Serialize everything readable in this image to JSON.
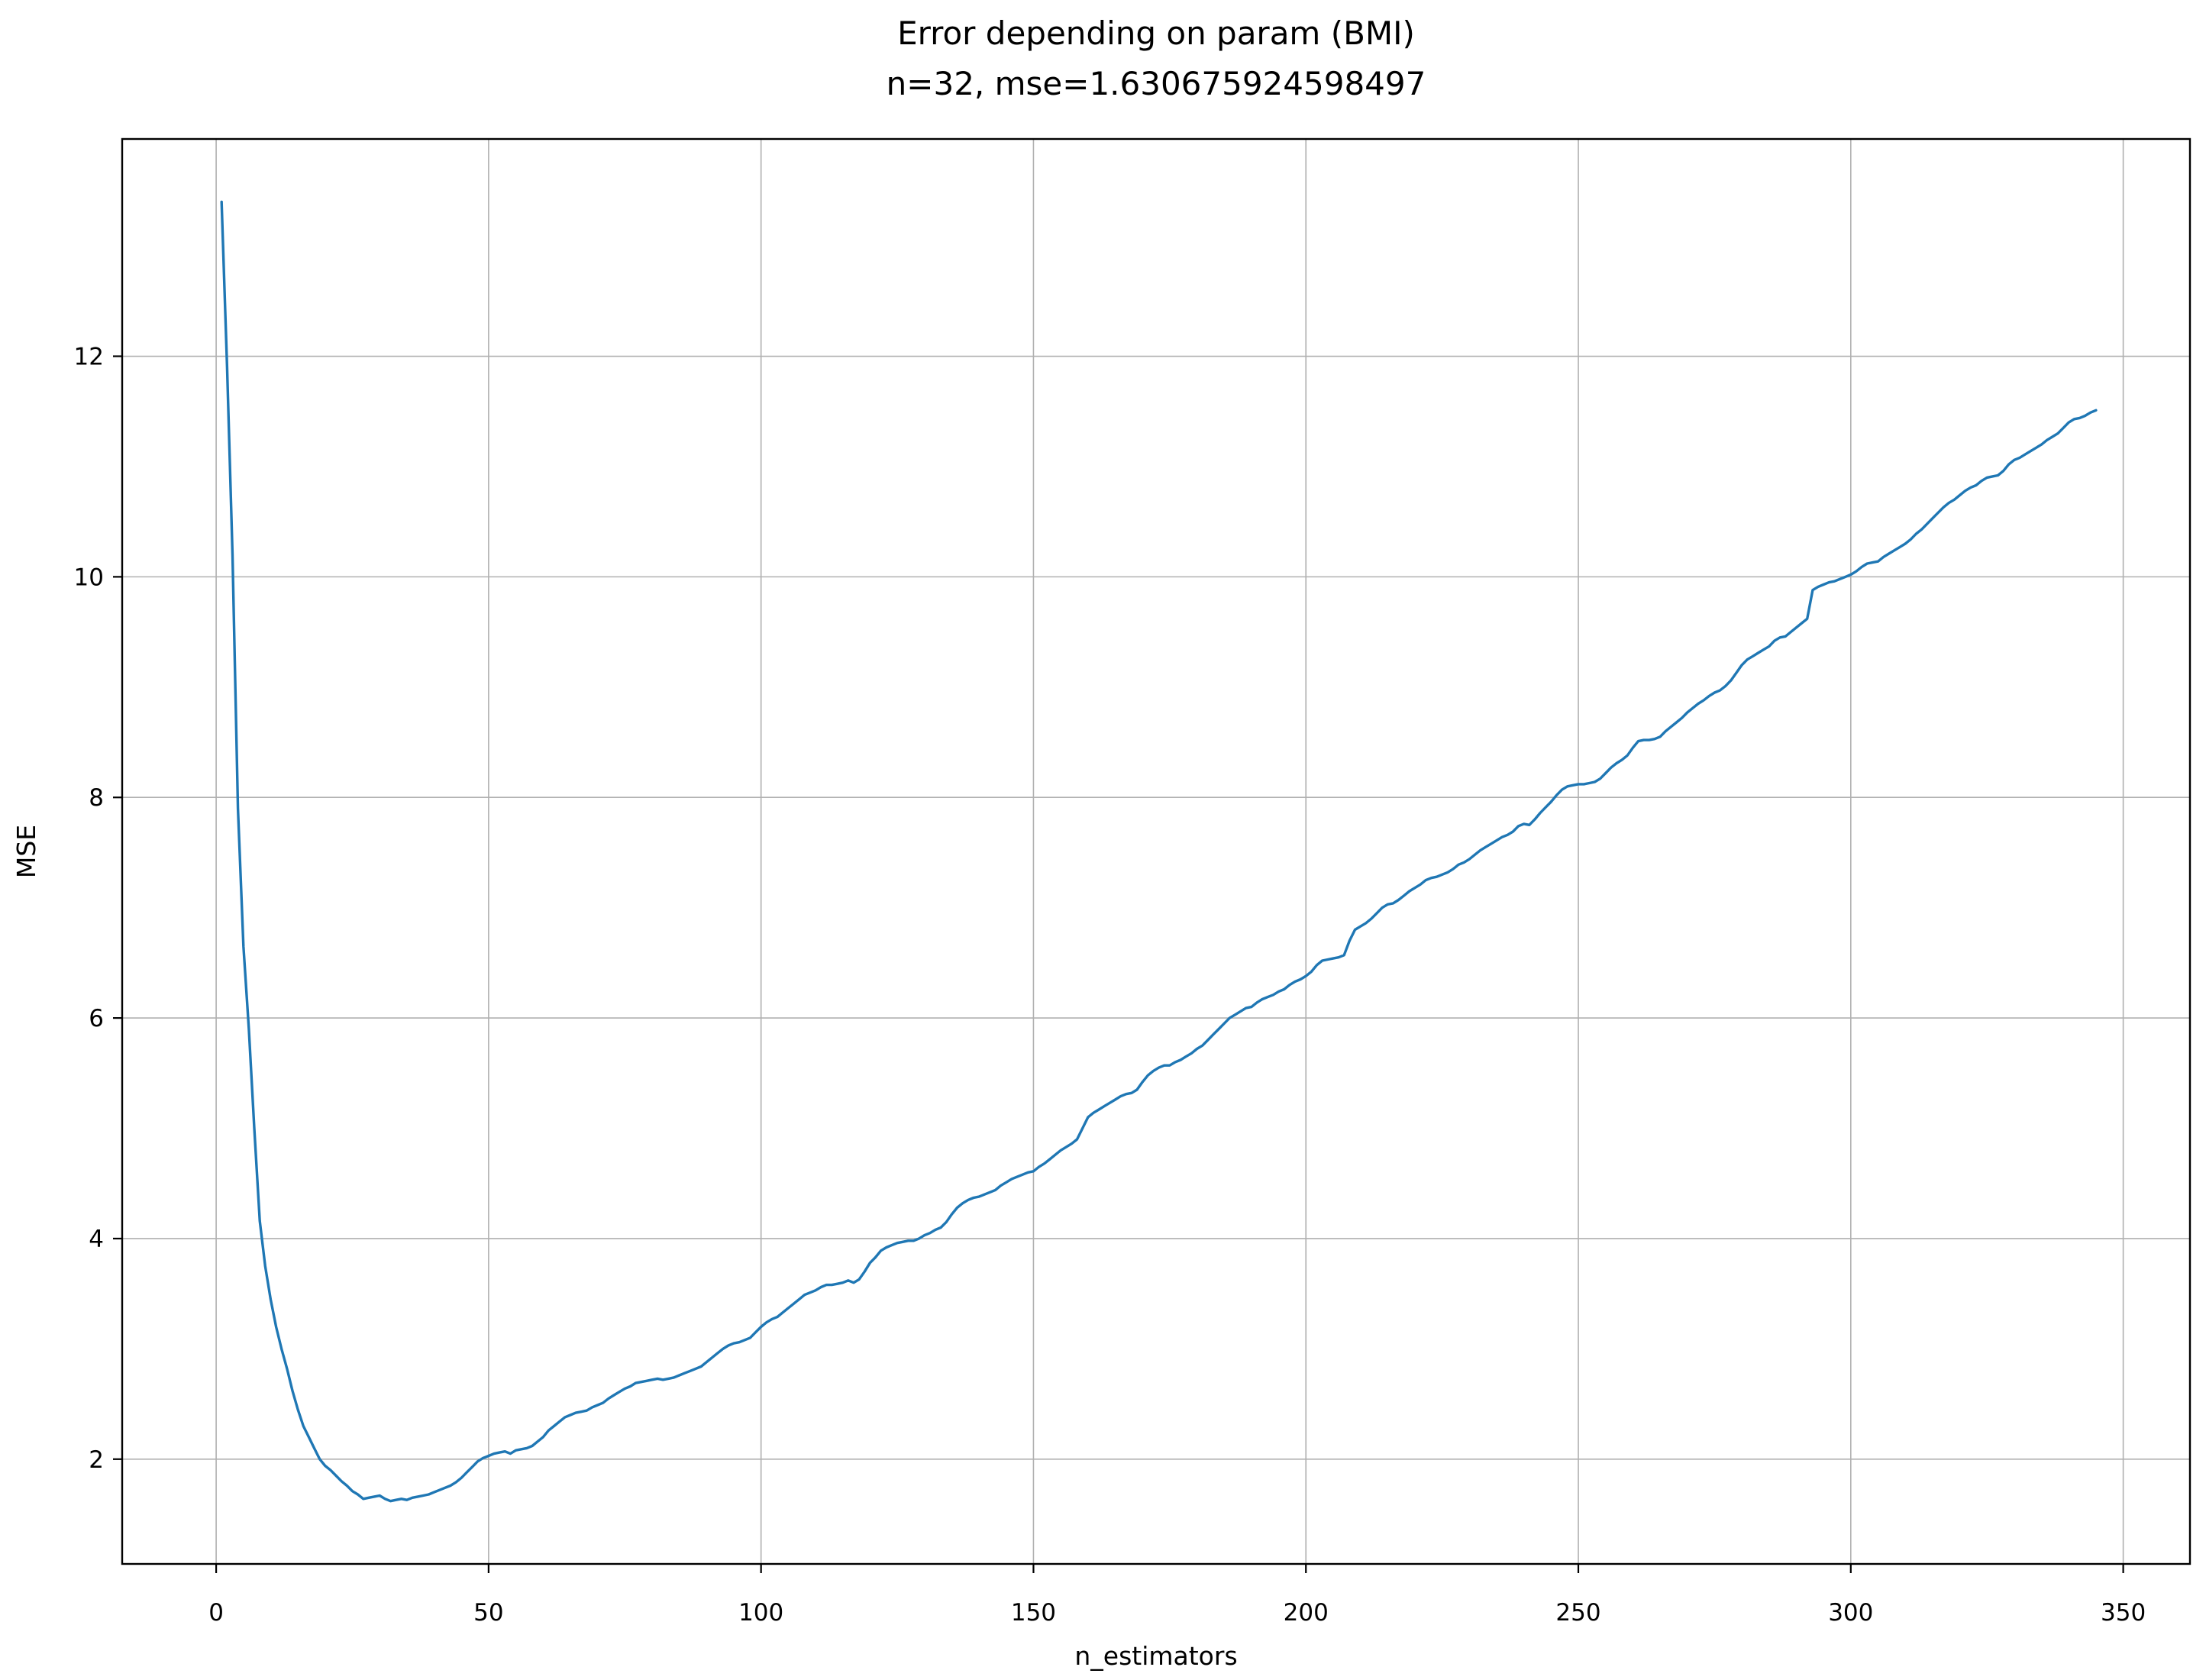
{
  "style": {
    "line_color": "#1f77b4",
    "grid_color": "#b0b0b0",
    "axis_color": "#000000",
    "background": "#ffffff"
  },
  "chart_data": {
    "type": "line",
    "title": "Error depending on param (BMI)",
    "subtitle": "n=32, mse=1.630675924598497",
    "xlabel": "n_estimators",
    "ylabel": "MSE",
    "grid": true,
    "legend": "none",
    "x_ticks": [
      0,
      50,
      100,
      150,
      200,
      250,
      300,
      350
    ],
    "y_ticks": [
      2,
      4,
      6,
      8,
      10,
      12
    ],
    "xlim": [
      -17.25,
      362.25
    ],
    "ylim": [
      1.05,
      13.97
    ],
    "series": [
      {
        "name": "MSE",
        "color": "#1f77b4",
        "x_start": 1,
        "x_step": 1,
        "values": [
          13.4,
          11.9,
          10.2,
          7.9,
          6.65,
          5.9,
          5.0,
          4.16,
          3.75,
          3.45,
          3.2,
          3.0,
          2.82,
          2.62,
          2.45,
          2.3,
          2.2,
          2.1,
          2.0,
          1.94,
          1.9,
          1.85,
          1.8,
          1.76,
          1.71,
          1.68,
          1.64,
          1.65,
          1.66,
          1.67,
          1.64,
          1.62,
          1.63,
          1.64,
          1.63,
          1.65,
          1.66,
          1.67,
          1.68,
          1.7,
          1.72,
          1.74,
          1.76,
          1.79,
          1.83,
          1.88,
          1.93,
          1.98,
          2.01,
          2.03,
          2.05,
          2.06,
          2.07,
          2.05,
          2.08,
          2.09,
          2.1,
          2.12,
          2.16,
          2.2,
          2.26,
          2.3,
          2.34,
          2.38,
          2.4,
          2.42,
          2.43,
          2.44,
          2.47,
          2.49,
          2.51,
          2.55,
          2.58,
          2.61,
          2.64,
          2.66,
          2.69,
          2.7,
          2.71,
          2.72,
          2.73,
          2.72,
          2.73,
          2.74,
          2.76,
          2.78,
          2.8,
          2.82,
          2.84,
          2.88,
          2.92,
          2.96,
          3.0,
          3.03,
          3.05,
          3.06,
          3.08,
          3.1,
          3.15,
          3.2,
          3.24,
          3.27,
          3.29,
          3.33,
          3.37,
          3.41,
          3.45,
          3.49,
          3.51,
          3.53,
          3.56,
          3.58,
          3.58,
          3.59,
          3.6,
          3.62,
          3.6,
          3.63,
          3.7,
          3.78,
          3.83,
          3.89,
          3.92,
          3.94,
          3.96,
          3.97,
          3.98,
          3.98,
          4.0,
          4.03,
          4.05,
          4.08,
          4.1,
          4.15,
          4.22,
          4.28,
          4.32,
          4.35,
          4.37,
          4.38,
          4.4,
          4.42,
          4.44,
          4.48,
          4.51,
          4.54,
          4.56,
          4.58,
          4.6,
          4.61,
          4.65,
          4.68,
          4.72,
          4.76,
          4.8,
          4.83,
          4.86,
          4.9,
          5.0,
          5.1,
          5.14,
          5.17,
          5.2,
          5.23,
          5.26,
          5.29,
          5.31,
          5.32,
          5.35,
          5.42,
          5.48,
          5.52,
          5.55,
          5.57,
          5.57,
          5.6,
          5.62,
          5.65,
          5.68,
          5.72,
          5.75,
          5.8,
          5.85,
          5.9,
          5.95,
          6.0,
          6.03,
          6.06,
          6.09,
          6.1,
          6.14,
          6.17,
          6.19,
          6.21,
          6.24,
          6.26,
          6.3,
          6.33,
          6.35,
          6.38,
          6.42,
          6.48,
          6.52,
          6.53,
          6.54,
          6.55,
          6.57,
          6.7,
          6.8,
          6.83,
          6.86,
          6.9,
          6.95,
          7.0,
          7.03,
          7.04,
          7.07,
          7.11,
          7.15,
          7.18,
          7.21,
          7.25,
          7.27,
          7.28,
          7.3,
          7.32,
          7.35,
          7.39,
          7.41,
          7.44,
          7.48,
          7.52,
          7.55,
          7.58,
          7.61,
          7.64,
          7.66,
          7.69,
          7.74,
          7.76,
          7.75,
          7.8,
          7.86,
          7.91,
          7.96,
          8.02,
          8.07,
          8.1,
          8.11,
          8.12,
          8.12,
          8.13,
          8.14,
          8.17,
          8.22,
          8.27,
          8.31,
          8.34,
          8.38,
          8.45,
          8.51,
          8.52,
          8.52,
          8.53,
          8.55,
          8.6,
          8.64,
          8.68,
          8.72,
          8.77,
          8.81,
          8.85,
          8.88,
          8.92,
          8.95,
          8.97,
          9.01,
          9.06,
          9.13,
          9.2,
          9.25,
          9.28,
          9.31,
          9.34,
          9.37,
          9.42,
          9.45,
          9.46,
          9.5,
          9.54,
          9.58,
          9.62,
          9.88,
          9.91,
          9.93,
          9.95,
          9.96,
          9.98,
          10.0,
          10.02,
          10.05,
          10.09,
          10.12,
          10.13,
          10.14,
          10.18,
          10.21,
          10.24,
          10.27,
          10.3,
          10.34,
          10.39,
          10.43,
          10.48,
          10.53,
          10.58,
          10.63,
          10.67,
          10.7,
          10.74,
          10.78,
          10.81,
          10.83,
          10.87,
          10.9,
          10.91,
          10.92,
          10.96,
          11.02,
          11.06,
          11.08,
          11.11,
          11.14,
          11.17,
          11.2,
          11.24,
          11.27,
          11.3,
          11.35,
          11.4,
          11.43,
          11.44,
          11.46,
          11.49,
          11.51
        ]
      }
    ]
  }
}
